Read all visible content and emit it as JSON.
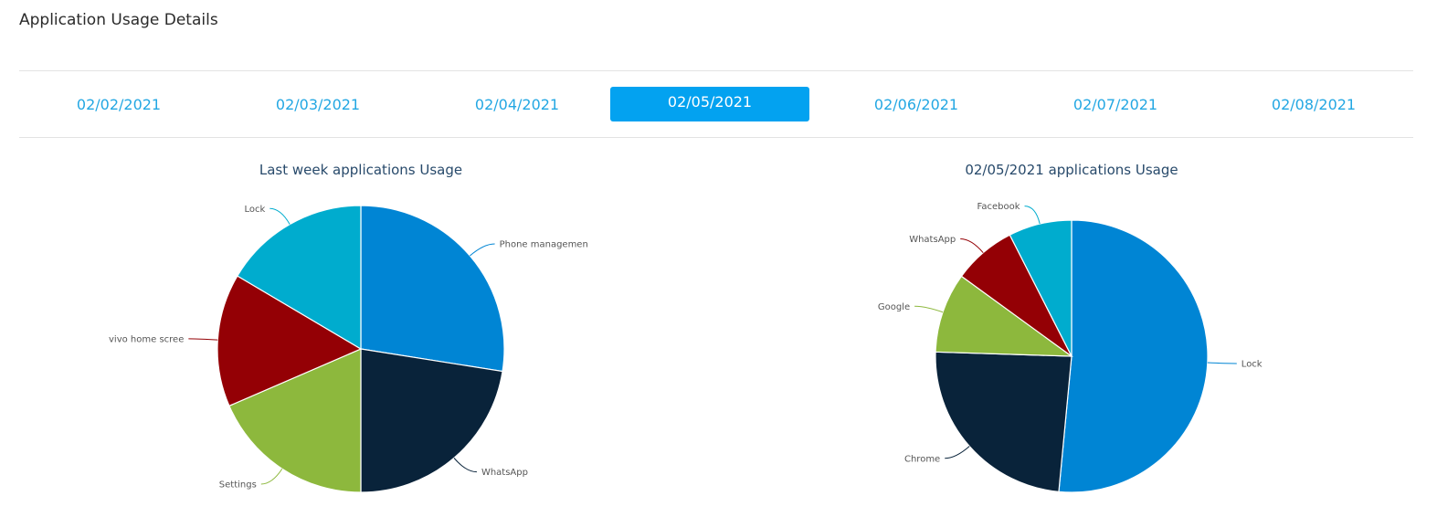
{
  "page": {
    "title": "Application Usage Details"
  },
  "date_tabs": {
    "items": [
      {
        "label": "02/02/2021",
        "active": false
      },
      {
        "label": "02/03/2021",
        "active": false
      },
      {
        "label": "02/04/2021",
        "active": false
      },
      {
        "label": "02/05/2021",
        "active": true
      },
      {
        "label": "02/06/2021",
        "active": false
      },
      {
        "label": "02/07/2021",
        "active": false
      },
      {
        "label": "02/08/2021",
        "active": false
      }
    ],
    "active_color": "#03a2f0",
    "text_color": "#23a7e3"
  },
  "chart_data": [
    {
      "type": "pie",
      "title": "Last week applications Usage",
      "series": [
        {
          "name": "Phone managemen",
          "value": 27.5,
          "color": "#0085d4"
        },
        {
          "name": "WhatsApp",
          "value": 22.5,
          "color": "#09233a"
        },
        {
          "name": "Settings",
          "value": 18.5,
          "color": "#8db83d"
        },
        {
          "name": "vivo home scree",
          "value": 15.0,
          "color": "#940005"
        },
        {
          "name": "Lock",
          "value": 16.5,
          "color": "#00acce"
        }
      ]
    },
    {
      "type": "pie",
      "title": "02/05/2021 applications Usage",
      "series": [
        {
          "name": "Lock",
          "value": 51.5,
          "color": "#0085d4"
        },
        {
          "name": "Chrome",
          "value": 24.0,
          "color": "#09233a"
        },
        {
          "name": "Google",
          "value": 9.5,
          "color": "#8db83d"
        },
        {
          "name": "WhatsApp",
          "value": 7.5,
          "color": "#940005"
        },
        {
          "name": "Facebook",
          "value": 7.5,
          "color": "#00acce"
        }
      ]
    }
  ]
}
